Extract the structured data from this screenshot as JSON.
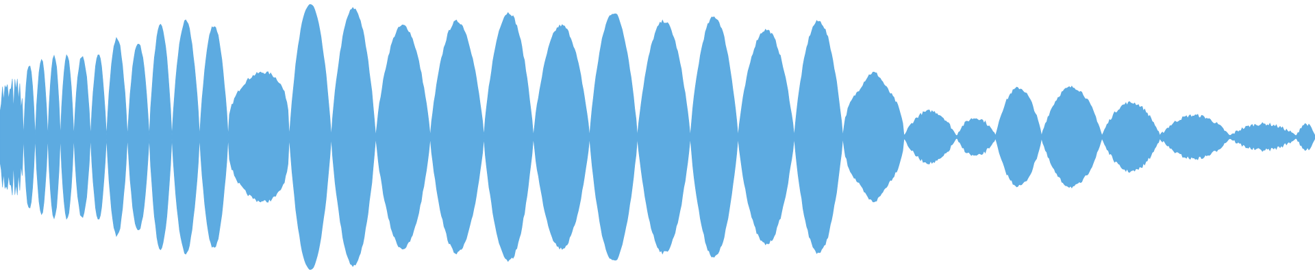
{
  "waveform": {
    "color": "#5dabe1"
  }
}
